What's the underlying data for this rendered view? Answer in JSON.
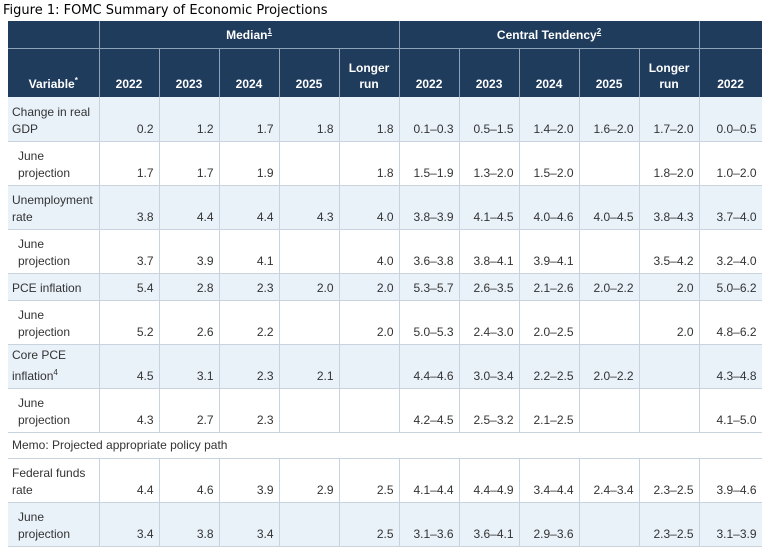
{
  "figure_title": "Figure 1: FOMC Summary of Economic Projections",
  "header": {
    "variable": "Variable",
    "variable_sup": "*",
    "median": "Median",
    "median_sup": "1",
    "central": "Central Tendency",
    "central_sup": "2",
    "median_cols": [
      "2022",
      "2023",
      "2024",
      "2025",
      "Longer run"
    ],
    "central_cols": [
      "2022",
      "2023",
      "2024",
      "2025",
      "Longer run"
    ],
    "extra_col": "2022"
  },
  "chart_data": {
    "type": "table",
    "title": "Figure 1: FOMC Summary of Economic Projections",
    "columns": [
      "Variable",
      "Median 2022",
      "Median 2023",
      "Median 2024",
      "Median 2025",
      "Median Longer run",
      "Central Tendency 2022",
      "Central Tendency 2023",
      "Central Tendency 2024",
      "Central Tendency 2025",
      "Central Tendency Longer run",
      "2022"
    ],
    "rows": [
      {
        "label": "Change in real GDP",
        "sup": "",
        "kind": "main",
        "shade": true,
        "cells": [
          "0.2",
          "1.2",
          "1.7",
          "1.8",
          "1.8",
          "0.1–0.3",
          "0.5–1.5",
          "1.4–2.0",
          "1.6–2.0",
          "1.7–2.0",
          "0.0–0.5"
        ]
      },
      {
        "label": "June projection",
        "sup": "",
        "kind": "sub",
        "shade": false,
        "cells": [
          "1.7",
          "1.7",
          "1.9",
          "",
          "1.8",
          "1.5–1.9",
          "1.3–2.0",
          "1.5–2.0",
          "",
          "1.8–2.0",
          "1.0–2.0"
        ]
      },
      {
        "label": "Unemployment rate",
        "sup": "",
        "kind": "main",
        "shade": true,
        "cells": [
          "3.8",
          "4.4",
          "4.4",
          "4.3",
          "4.0",
          "3.8–3.9",
          "4.1–4.5",
          "4.0–4.6",
          "4.0–4.5",
          "3.8–4.3",
          "3.7–4.0"
        ]
      },
      {
        "label": "June projection",
        "sup": "",
        "kind": "sub",
        "shade": false,
        "cells": [
          "3.7",
          "3.9",
          "4.1",
          "",
          "4.0",
          "3.6–3.8",
          "3.8–4.1",
          "3.9–4.1",
          "",
          "3.5–4.2",
          "3.2–4.0"
        ]
      },
      {
        "label": "PCE inflation",
        "sup": "",
        "kind": "one",
        "shade": true,
        "cells": [
          "5.4",
          "2.8",
          "2.3",
          "2.0",
          "2.0",
          "5.3–5.7",
          "2.6–3.5",
          "2.1–2.6",
          "2.0–2.2",
          "2.0",
          "5.0–6.2"
        ]
      },
      {
        "label": "June projection",
        "sup": "",
        "kind": "sub",
        "shade": false,
        "cells": [
          "5.2",
          "2.6",
          "2.2",
          "",
          "2.0",
          "5.0–5.3",
          "2.4–3.0",
          "2.0–2.5",
          "",
          "2.0",
          "4.8–6.2"
        ]
      },
      {
        "label": "Core PCE inflation",
        "sup": "4",
        "kind": "main",
        "shade": true,
        "cells": [
          "4.5",
          "3.1",
          "2.3",
          "2.1",
          "",
          "4.4–4.6",
          "3.0–3.4",
          "2.2–2.5",
          "2.0–2.2",
          "",
          "4.3–4.8"
        ]
      },
      {
        "label": "June projection",
        "sup": "",
        "kind": "sub",
        "shade": false,
        "cells": [
          "4.3",
          "2.7",
          "2.3",
          "",
          "",
          "4.2–4.5",
          "2.5–3.2",
          "2.1–2.5",
          "",
          "",
          "4.1–5.0"
        ]
      },
      {
        "label": "Memo: Projected appropriate policy path",
        "sup": "",
        "kind": "memo",
        "shade": false,
        "cells": []
      },
      {
        "label": "Federal funds rate",
        "sup": "",
        "kind": "main",
        "shade": false,
        "cells": [
          "4.4",
          "4.6",
          "3.9",
          "2.9",
          "2.5",
          "4.1–4.4",
          "4.4–4.9",
          "3.4–4.4",
          "2.4–3.4",
          "2.3–2.5",
          "3.9–4.6"
        ]
      },
      {
        "label": "June projection",
        "sup": "",
        "kind": "sub",
        "shade": true,
        "cells": [
          "3.4",
          "3.8",
          "3.4",
          "",
          "2.5",
          "3.1–3.6",
          "3.6–4.1",
          "2.9–3.6",
          "",
          "2.3–2.5",
          "3.1–3.9"
        ]
      }
    ]
  }
}
